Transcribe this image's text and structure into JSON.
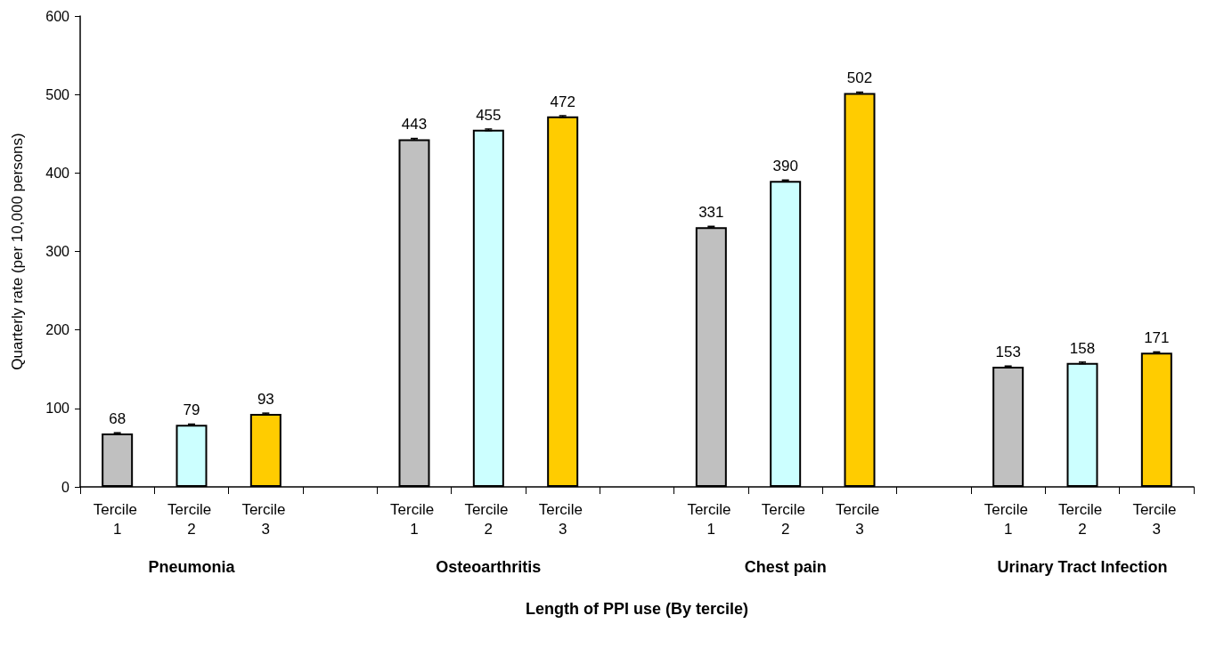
{
  "chart_data": {
    "type": "bar",
    "xlabel": "Length of PPI use (By tercile)",
    "ylabel": "Quarterly rate (per 10,000 persons)",
    "categories": [
      "Tercile 1",
      "Tercile 2",
      "Tercile 3",
      null,
      "Tercile 1",
      "Tercile 2",
      "Tercile 3",
      null,
      "Tercile 1",
      "Tercile 2",
      "Tercile 3",
      null,
      "Tercile 1",
      "Tercile 2",
      "Tercile 3"
    ],
    "values": [
      68,
      79,
      93,
      null,
      443,
      455,
      472,
      null,
      331,
      390,
      502,
      null,
      153,
      158,
      171
    ],
    "colors": [
      "#c0c0c0",
      "#ccffff",
      "#ffcc00",
      null,
      "#c0c0c0",
      "#ccffff",
      "#ffcc00",
      null,
      "#c0c0c0",
      "#ccffff",
      "#ffcc00",
      null,
      "#c0c0c0",
      "#ccffff",
      "#ffcc00"
    ],
    "errors": [
      1,
      1,
      1,
      null,
      1,
      1,
      1,
      null,
      1,
      1,
      1,
      null,
      1,
      1,
      1
    ],
    "ylim": [
      0,
      600
    ],
    "yticks": [
      0,
      100,
      200,
      300,
      400,
      500,
      600
    ],
    "data_labels": true,
    "annotations": [
      "Pneumonia",
      "Osteoarthritis",
      "Chest pain",
      "Urinary Tract Infection"
    ]
  }
}
